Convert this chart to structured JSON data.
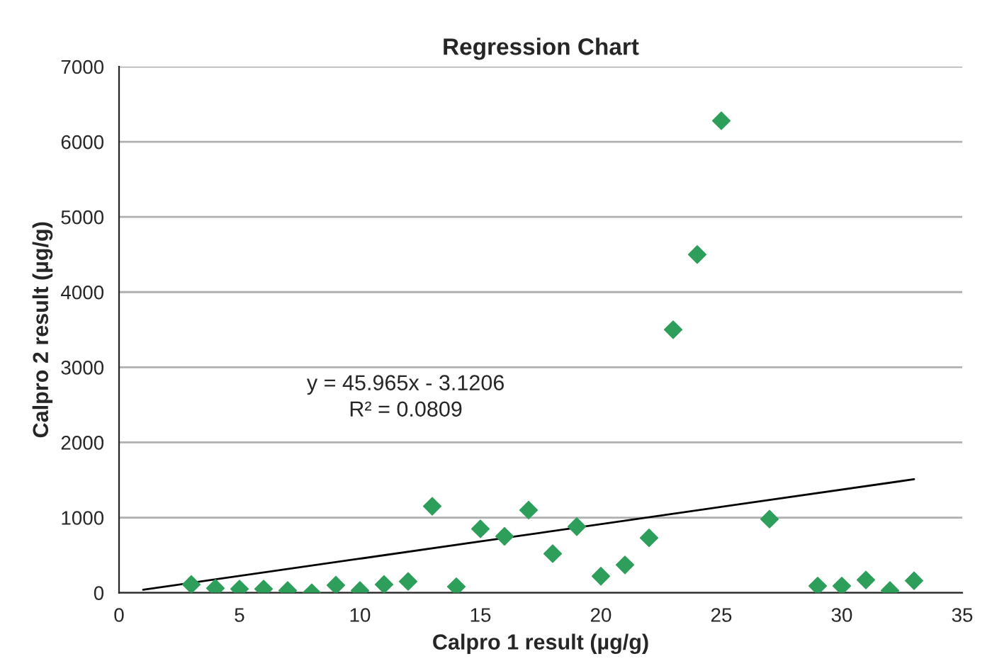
{
  "chart_data": {
    "type": "scatter",
    "title": "Regression Chart",
    "xlabel": "Calpro 1 result (µg/g)",
    "ylabel": "Calpro 2 result (µg/g)",
    "xlim": [
      0,
      35
    ],
    "xticks": [
      0,
      5,
      10,
      15,
      20,
      25,
      30,
      35
    ],
    "ylim": [
      0,
      7000
    ],
    "yticks": [
      0,
      1000,
      2000,
      3000,
      4000,
      5000,
      6000,
      7000
    ],
    "grid": "y",
    "marker": "diamond",
    "legend": false,
    "annotations": [
      "y = 45.965x - 3.1206",
      "R² = 0.0809"
    ],
    "series": [
      {
        "color": "#2e9e5b",
        "x": [
          3,
          4,
          5,
          6,
          7,
          8,
          9,
          10,
          11,
          12,
          13,
          14,
          15,
          16,
          17,
          18,
          19,
          20,
          21,
          22,
          23,
          24,
          25,
          27,
          29,
          30,
          31,
          32,
          33
        ],
        "values": [
          110,
          60,
          50,
          50,
          30,
          0,
          100,
          30,
          110,
          150,
          1150,
          80,
          850,
          750,
          1100,
          520,
          880,
          220,
          370,
          730,
          3500,
          4500,
          6280,
          980,
          90,
          90,
          170,
          30,
          160
        ]
      },
      {
        "type": "line",
        "marker": "none",
        "color": "#000000",
        "x": [
          1,
          33
        ],
        "values": [
          40,
          1510
        ]
      }
    ]
  }
}
